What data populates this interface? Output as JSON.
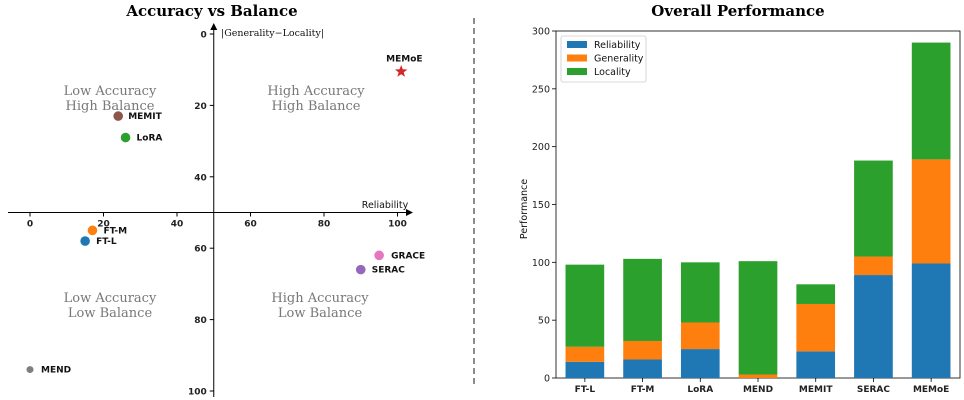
{
  "chart_data": [
    {
      "type": "scatter",
      "title": "Accuracy vs Balance",
      "xlabel": "Reliability",
      "ylabel": "|Generality−Locality|",
      "xlim": [
        -5,
        105
      ],
      "ylim": [
        100,
        0
      ],
      "y_inverted": true,
      "x_ticks": [
        "0",
        "20",
        "40",
        "60",
        "80",
        "100"
      ],
      "y_ticks": [
        "0",
        "20",
        "40",
        "60",
        "80",
        "100"
      ],
      "points": [
        {
          "label": "MEMoE",
          "x": 101,
          "y": 10.5,
          "color": "#d62728",
          "marker": "star"
        },
        {
          "label": "MEMIT",
          "x": 24,
          "y": 23,
          "color": "#8c564b",
          "marker": "circle"
        },
        {
          "label": "LoRA",
          "x": 26,
          "y": 29,
          "color": "#2ca02c",
          "marker": "circle"
        },
        {
          "label": "FT-M",
          "x": 17,
          "y": 55,
          "color": "#ff7f0e",
          "marker": "circle"
        },
        {
          "label": "FT-L",
          "x": 15,
          "y": 58,
          "color": "#1f77b4",
          "marker": "circle"
        },
        {
          "label": "GRACE",
          "x": 95,
          "y": 62,
          "color": "#e377c2",
          "marker": "circle"
        },
        {
          "label": "SERAC",
          "x": 90,
          "y": 66,
          "color": "#9467bd",
          "marker": "circle"
        },
        {
          "label": "MEND",
          "x": 0,
          "y": 94,
          "color": "#7f7f7f",
          "marker": "circle"
        }
      ],
      "annotations": [
        {
          "line1": "Low Accuracy",
          "line2": "High Balance"
        },
        {
          "line1": "High Accuracy",
          "line2": "High Balance"
        },
        {
          "line1": "Low Accuracy",
          "line2": "Low Balance"
        },
        {
          "line1": "High Accuracy",
          "line2": "Low Balance"
        }
      ]
    },
    {
      "type": "bar",
      "stacked": true,
      "title": "Overall Performance",
      "xlabel": "",
      "ylabel": "Performance",
      "ylim": [
        0,
        300
      ],
      "y_ticks": [
        "0",
        "50",
        "100",
        "150",
        "200",
        "250",
        "300"
      ],
      "categories": [
        "FT-L",
        "FT-M",
        "LoRA",
        "MEND",
        "MEMIT",
        "SERAC",
        "MEMoE"
      ],
      "series": [
        {
          "name": "Reliability",
          "color": "#1f77b4",
          "values": [
            14,
            16,
            25,
            0,
            23,
            89,
            99
          ]
        },
        {
          "name": "Generality",
          "color": "#ff7f0e",
          "values": [
            13,
            16,
            23,
            3,
            41,
            16,
            90
          ]
        },
        {
          "name": "Locality",
          "color": "#2ca02c",
          "values": [
            71,
            71,
            52,
            98,
            17,
            83,
            101
          ]
        }
      ],
      "legend_position": "top-left",
      "grid": false
    }
  ]
}
